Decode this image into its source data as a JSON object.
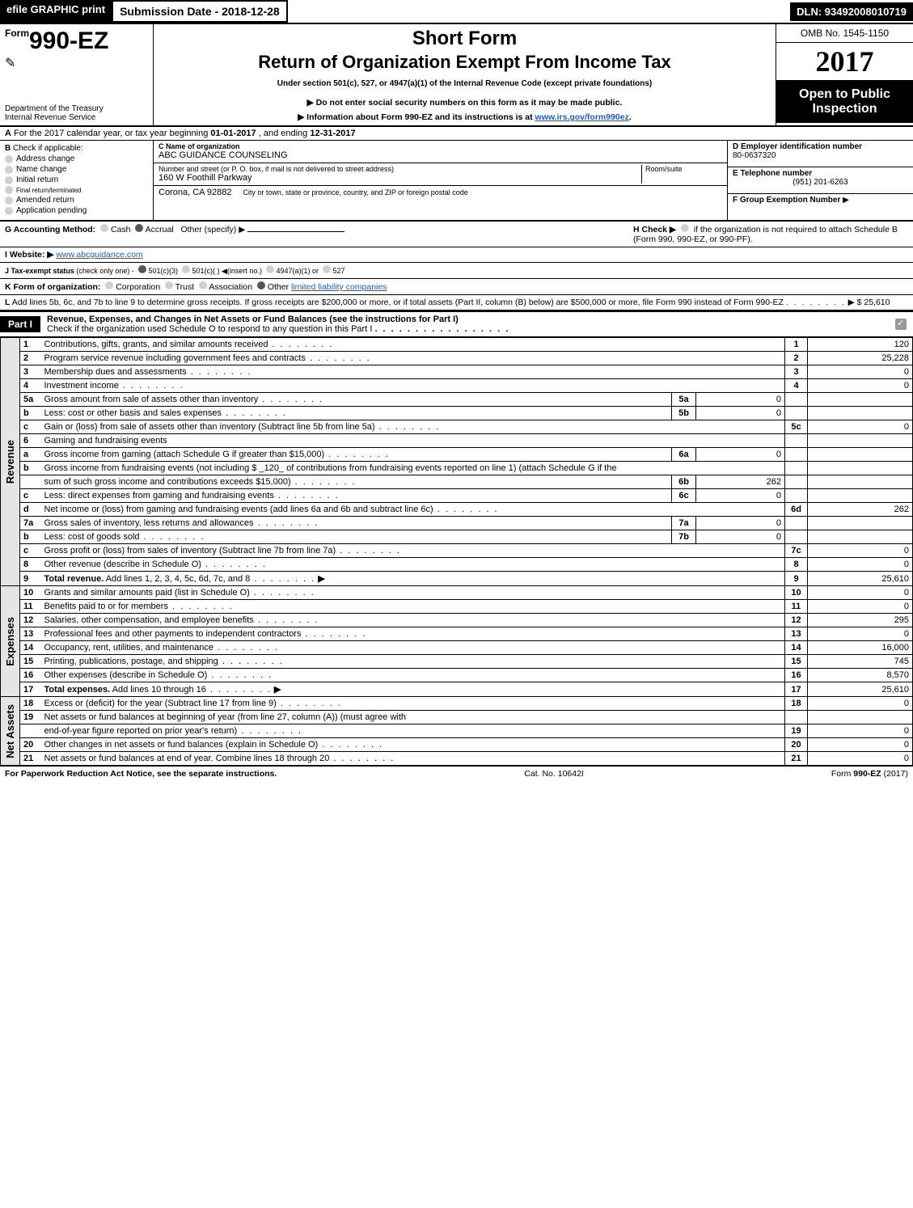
{
  "header": {
    "efile_label": "efile GRAPHIC print",
    "submission_label": "Submission Date - 2018-12-28",
    "dln_label": "DLN: 93492008010719"
  },
  "title": {
    "form_prefix": "Form",
    "form_number": "990-EZ",
    "short_form": "Short Form",
    "main": "Return of Organization Exempt From Income Tax",
    "under": "Under section 501(c), 527, or 4947(a)(1) of the Internal Revenue Code (except private foundations)",
    "arrow1": "▶ Do not enter social security numbers on this form as it may be made public.",
    "arrow2_prefix": "▶ Information about Form 990-EZ and its instructions is at ",
    "arrow2_link": "www.irs.gov/form990ez",
    "arrow2_suffix": ".",
    "dept1": "Department of the Treasury",
    "dept2": "Internal Revenue Service",
    "omb": "OMB No. 1545-1150",
    "year": "2017",
    "open": "Open to Public Inspection"
  },
  "lineA": {
    "a_label": "A",
    "text_pre": "For the 2017 calendar year, or tax year beginning ",
    "begin": "01-01-2017",
    "mid": ", and ending ",
    "end": "12-31-2017"
  },
  "checks": {
    "b_label": "B",
    "heading": "Check if applicable:",
    "items": [
      "Address change",
      "Name change",
      "Initial return",
      "Final return/terminated",
      "Amended return",
      "Application pending"
    ]
  },
  "org": {
    "c_label": "C Name of organization",
    "name": "ABC GUIDANCE COUNSELING",
    "addr_label": "Number and street (or P. O. box, if mail is not delivered to street address)",
    "room_label": "Room/suite",
    "street": "160 W Foothill Parkway",
    "city_label": "City or town, state or province, country, and ZIP or foreign postal code",
    "city": "Corona, CA  92882"
  },
  "right_ids": {
    "d_label": "D Employer identification number",
    "ein": "80-0637320",
    "e_label": "E Telephone number",
    "phone": "(951) 201-6263",
    "f_label": "F Group Exemption Number",
    "f_arrow": "▶"
  },
  "lineG": {
    "label": "G Accounting Method:",
    "opts": [
      "Cash",
      "Accrual",
      "Other (specify) ▶"
    ],
    "selected": 1
  },
  "lineH": {
    "label_pre": "H  Check ▶",
    "text": "if the organization is not required to attach Schedule B (Form 990, 990-EZ, or 990-PF)."
  },
  "lineI": {
    "label": "I Website: ▶",
    "url": "www.abcguidance.com"
  },
  "lineJ": {
    "label": "J Tax-exempt status",
    "note": "(check only one) -",
    "opts": [
      "501(c)(3)",
      "501(c)(  ) ◀(insert no.)",
      "4947(a)(1) or",
      "527"
    ],
    "selected": 0
  },
  "lineK": {
    "label": "K Form of organization:",
    "opts": [
      "Corporation",
      "Trust",
      "Association",
      "Other"
    ],
    "other_text": "limited liability companies",
    "selected": 3
  },
  "lineL": {
    "label": "L",
    "text": "Add lines 5b, 6c, and 7b to line 9 to determine gross receipts. If gross receipts are $200,000 or more, or if total assets (Part II, column (B) below) are $500,000 or more, file Form 990 instead of Form 990-EZ",
    "arrow": "▶",
    "amount": "$ 25,610"
  },
  "part1": {
    "label": "Part I",
    "title": "Revenue, Expenses, and Changes in Net Assets or Fund Balances (see the instructions for Part I)",
    "subline": "Check if the organization used Schedule O to respond to any question in this Part I"
  },
  "side_labels": {
    "revenue": "Revenue",
    "expenses": "Expenses",
    "netassets": "Net Assets"
  },
  "rows": [
    {
      "n": "1",
      "txt": "Contributions, gifts, grants, and similar amounts received",
      "box": "1",
      "val": "120"
    },
    {
      "n": "2",
      "txt": "Program service revenue including government fees and contracts",
      "box": "2",
      "val": "25,228"
    },
    {
      "n": "3",
      "txt": "Membership dues and assessments",
      "box": "3",
      "val": "0"
    },
    {
      "n": "4",
      "txt": "Investment income",
      "box": "4",
      "val": "0"
    },
    {
      "n": "5a",
      "txt": "Gross amount from sale of assets other than inventory",
      "sub": "5a",
      "subval": "0",
      "grey": true
    },
    {
      "n": "b",
      "txt": "Less: cost or other basis and sales expenses",
      "sub": "5b",
      "subval": "0",
      "grey": true
    },
    {
      "n": "c",
      "txt": "Gain or (loss) from sale of assets other than inventory (Subtract line 5b from line 5a)",
      "box": "5c",
      "val": "0"
    },
    {
      "n": "6",
      "txt": "Gaming and fundraising events",
      "grey": true,
      "header": true
    },
    {
      "n": "a",
      "txt": "Gross income from gaming (attach Schedule G if greater than $15,000)",
      "sub": "6a",
      "subval": "0",
      "grey": true
    },
    {
      "n": "b",
      "txt": "Gross income from fundraising events (not including $ _120_ of contributions from fundraising events reported on line 1) (attach Schedule G if the",
      "grey": true,
      "nowrap": true
    },
    {
      "n": "",
      "txt": "sum of such gross income and contributions exceeds $15,000)",
      "sub": "6b",
      "subval": "262",
      "grey": true
    },
    {
      "n": "c",
      "txt": "Less: direct expenses from gaming and fundraising events",
      "sub": "6c",
      "subval": "0",
      "grey": true
    },
    {
      "n": "d",
      "txt": "Net income or (loss) from gaming and fundraising events (add lines 6a and 6b and subtract line 6c)",
      "box": "6d",
      "val": "262"
    },
    {
      "n": "7a",
      "txt": "Gross sales of inventory, less returns and allowances",
      "sub": "7a",
      "subval": "0",
      "grey": true
    },
    {
      "n": "b",
      "txt": "Less: cost of goods sold",
      "sub": "7b",
      "subval": "0",
      "grey": true
    },
    {
      "n": "c",
      "txt": "Gross profit or (loss) from sales of inventory (Subtract line 7b from line 7a)",
      "box": "7c",
      "val": "0"
    },
    {
      "n": "8",
      "txt": "Other revenue (describe in Schedule O)",
      "box": "8",
      "val": "0"
    },
    {
      "n": "9",
      "txt": "Total revenue. Add lines 1, 2, 3, 4, 5c, 6d, 7c, and 8",
      "box": "9",
      "val": "25,610",
      "bold": true,
      "arrow": true
    }
  ],
  "exp_rows": [
    {
      "n": "10",
      "txt": "Grants and similar amounts paid (list in Schedule O)",
      "box": "10",
      "val": "0"
    },
    {
      "n": "11",
      "txt": "Benefits paid to or for members",
      "box": "11",
      "val": "0"
    },
    {
      "n": "12",
      "txt": "Salaries, other compensation, and employee benefits",
      "box": "12",
      "val": "295"
    },
    {
      "n": "13",
      "txt": "Professional fees and other payments to independent contractors",
      "box": "13",
      "val": "0"
    },
    {
      "n": "14",
      "txt": "Occupancy, rent, utilities, and maintenance",
      "box": "14",
      "val": "16,000"
    },
    {
      "n": "15",
      "txt": "Printing, publications, postage, and shipping",
      "box": "15",
      "val": "745"
    },
    {
      "n": "16",
      "txt": "Other expenses (describe in Schedule O)",
      "box": "16",
      "val": "8,570"
    },
    {
      "n": "17",
      "txt": "Total expenses. Add lines 10 through 16",
      "box": "17",
      "val": "25,610",
      "bold": true,
      "arrow": true
    }
  ],
  "net_rows": [
    {
      "n": "18",
      "txt": "Excess or (deficit) for the year (Subtract line 17 from line 9)",
      "box": "18",
      "val": "0"
    },
    {
      "n": "19",
      "txt": "Net assets or fund balances at beginning of year (from line 27, column (A)) (must agree with",
      "grey": true,
      "nowrap": true
    },
    {
      "n": "",
      "txt": "end-of-year figure reported on prior year's return)",
      "box": "19",
      "val": "0"
    },
    {
      "n": "20",
      "txt": "Other changes in net assets or fund balances (explain in Schedule O)",
      "box": "20",
      "val": "0"
    },
    {
      "n": "21",
      "txt": "Net assets or fund balances at end of year. Combine lines 18 through 20",
      "box": "21",
      "val": "0"
    }
  ],
  "footer": {
    "left": "For Paperwork Reduction Act Notice, see the separate instructions.",
    "mid": "Cat. No. 10642I",
    "right_pre": "Form ",
    "right_form": "990-EZ",
    "right_suf": " (2017)"
  },
  "colors": {
    "black": "#000000",
    "grey_cell": "#cccccc",
    "side_grey": "#e5e5e5",
    "link": "#1a5fb4"
  }
}
